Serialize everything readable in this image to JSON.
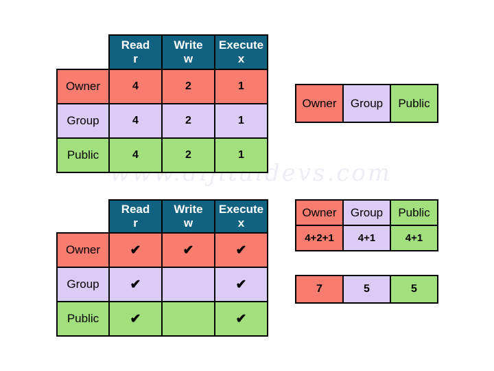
{
  "watermark": "www.dijitaldevs.com",
  "colors": {
    "header": "#116180",
    "owner": "#f97d6f",
    "group": "#dbccf5",
    "public": "#a2df7d",
    "border": "#000000",
    "header_text": "#ffffff"
  },
  "columns": [
    {
      "title": "Read",
      "sub": "r"
    },
    {
      "title": "Write",
      "sub": "w"
    },
    {
      "title": "Execute",
      "sub": "x"
    }
  ],
  "octal_table": {
    "rows": [
      {
        "label": "Owner",
        "read": "4",
        "write": "2",
        "execute": "1"
      },
      {
        "label": "Group",
        "read": "4",
        "write": "2",
        "execute": "1"
      },
      {
        "label": "Public",
        "read": "4",
        "write": "2",
        "execute": "1"
      }
    ]
  },
  "check_table": {
    "rows": [
      {
        "label": "Owner",
        "read": "✔",
        "write": "✔",
        "execute": "✔"
      },
      {
        "label": "Group",
        "read": "✔",
        "write": "",
        "execute": "✔"
      },
      {
        "label": "Public",
        "read": "✔",
        "write": "",
        "execute": "✔"
      }
    ]
  },
  "entity_row": {
    "cells": [
      "Owner",
      "Group",
      "Public"
    ]
  },
  "sum_table": {
    "header": [
      "Owner",
      "Group",
      "Public"
    ],
    "values": [
      "4+2+1",
      "4+1",
      "4+1"
    ]
  },
  "result_row": {
    "cells": [
      "7",
      "5",
      "5"
    ]
  }
}
